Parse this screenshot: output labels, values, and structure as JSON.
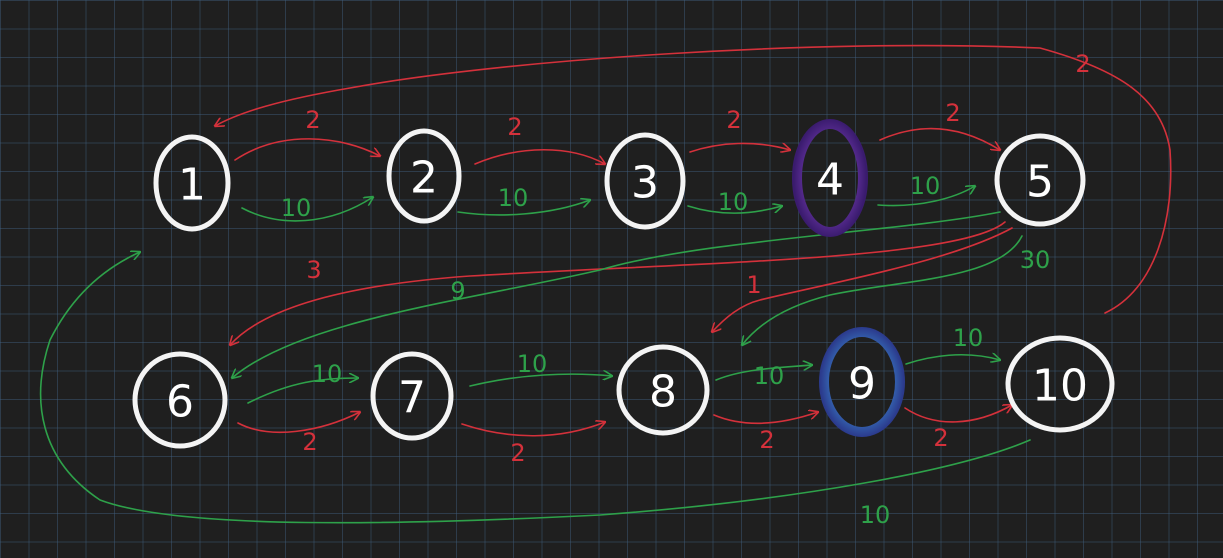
{
  "colors": {
    "red_edge": "#d4313b",
    "green_edge": "#2ea14a",
    "node_outline": "#f4f4f4",
    "purple_highlight": "#7a3fb8",
    "blue_highlight": "#3e8fd6"
  },
  "nodes": [
    {
      "id": "1",
      "label": "1"
    },
    {
      "id": "2",
      "label": "2"
    },
    {
      "id": "3",
      "label": "3"
    },
    {
      "id": "4",
      "label": "4",
      "highlight": "purple"
    },
    {
      "id": "5",
      "label": "5"
    },
    {
      "id": "6",
      "label": "6"
    },
    {
      "id": "7",
      "label": "7"
    },
    {
      "id": "8",
      "label": "8"
    },
    {
      "id": "9",
      "label": "9",
      "highlight": "blue"
    },
    {
      "id": "10",
      "label": "10"
    }
  ],
  "edges": [
    {
      "from": "1",
      "to": "2",
      "weight": "2",
      "color": "red"
    },
    {
      "from": "1",
      "to": "2",
      "weight": "10",
      "color": "green"
    },
    {
      "from": "2",
      "to": "3",
      "weight": "2",
      "color": "red"
    },
    {
      "from": "2",
      "to": "3",
      "weight": "10",
      "color": "green"
    },
    {
      "from": "3",
      "to": "4",
      "weight": "2",
      "color": "red"
    },
    {
      "from": "3",
      "to": "4",
      "weight": "10",
      "color": "green"
    },
    {
      "from": "4",
      "to": "5",
      "weight": "2",
      "color": "red"
    },
    {
      "from": "4",
      "to": "5",
      "weight": "10",
      "color": "green"
    },
    {
      "from": "10",
      "to": "1",
      "weight": "2",
      "color": "red"
    },
    {
      "from": "5",
      "to": "6",
      "weight": "3",
      "color": "red"
    },
    {
      "from": "5",
      "to": "6",
      "weight": "9",
      "color": "green"
    },
    {
      "from": "5",
      "to": "8",
      "weight": "1",
      "color": "red"
    },
    {
      "from": "5",
      "to": "8",
      "weight": "30",
      "color": "green"
    },
    {
      "from": "6",
      "to": "7",
      "weight": "10",
      "color": "green"
    },
    {
      "from": "6",
      "to": "7",
      "weight": "2",
      "color": "red"
    },
    {
      "from": "7",
      "to": "8",
      "weight": "10",
      "color": "green"
    },
    {
      "from": "7",
      "to": "8",
      "weight": "2",
      "color": "red"
    },
    {
      "from": "8",
      "to": "9",
      "weight": "10",
      "color": "green"
    },
    {
      "from": "8",
      "to": "9",
      "weight": "2",
      "color": "red"
    },
    {
      "from": "9",
      "to": "10",
      "weight": "10",
      "color": "green"
    },
    {
      "from": "9",
      "to": "10",
      "weight": "2",
      "color": "red"
    },
    {
      "from": "10",
      "to": "1",
      "weight": "10",
      "color": "green"
    }
  ]
}
